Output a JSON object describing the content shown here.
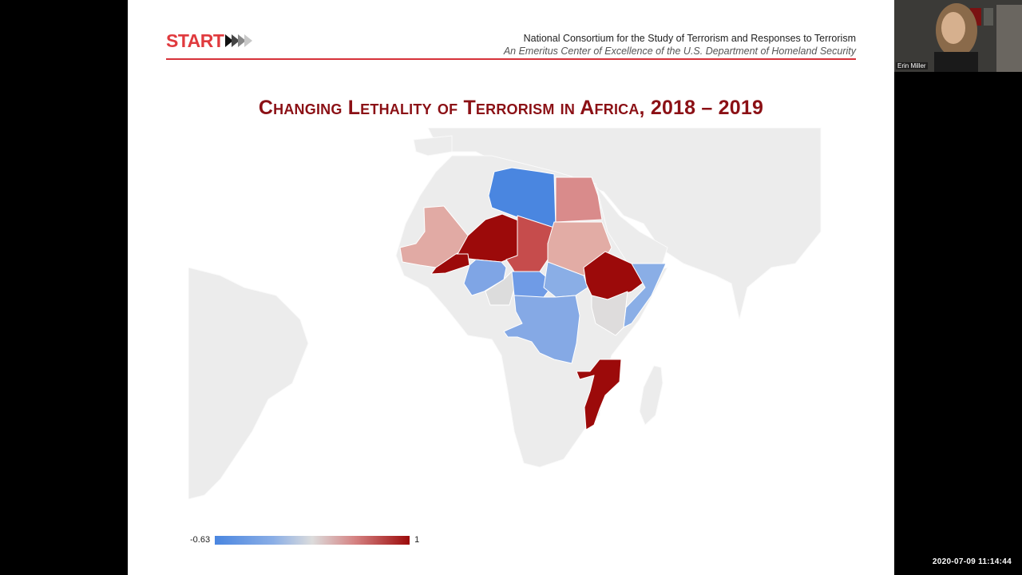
{
  "slide": {
    "logo_text": "START",
    "org_name": "National Consortium for the Study of Terrorism and Responses to Terrorism",
    "org_subtitle": "An Emeritus Center of Excellence of the U.S. Department of Homeland Security",
    "title": "Changing Lethality of Terrorism in Africa, 2018 – 2019"
  },
  "legend": {
    "min_label": "-0.63",
    "max_label": "1",
    "min_color": "#4a86e0",
    "mid_color": "#dcdcdc",
    "max_color": "#9c0a0a"
  },
  "video": {
    "participant_name": "Erin Miller"
  },
  "timestamp": "2020-07-09 11:14:44",
  "colors": {
    "brand_red": "#e03a3e",
    "title_red": "#8b1015",
    "rule_red": "#d6323a",
    "land_gray": "#ececec"
  },
  "map_regions": [
    {
      "name": "Libya",
      "color": "#4a86e0"
    },
    {
      "name": "Egypt",
      "color": "#d98b8b"
    },
    {
      "name": "Mali",
      "color": "#e1aaa4"
    },
    {
      "name": "Niger",
      "color": "#9c0a0a"
    },
    {
      "name": "Burkina Faso",
      "color": "#9c0a0a"
    },
    {
      "name": "Chad",
      "color": "#c64c4c"
    },
    {
      "name": "Sudan",
      "color": "#e2aca5"
    },
    {
      "name": "Nigeria",
      "color": "#7fa5e5"
    },
    {
      "name": "Cameroon",
      "color": "#dcdcdc"
    },
    {
      "name": "Central African Republic",
      "color": "#6f9be6"
    },
    {
      "name": "South Sudan",
      "color": "#8aaee6"
    },
    {
      "name": "Ethiopia",
      "color": "#9c0a0a"
    },
    {
      "name": "Somalia",
      "color": "#8aaee6"
    },
    {
      "name": "Kenya",
      "color": "#dedcdc"
    },
    {
      "name": "DR Congo",
      "color": "#85a9e5"
    },
    {
      "name": "Mozambique",
      "color": "#9c0a0a"
    }
  ]
}
